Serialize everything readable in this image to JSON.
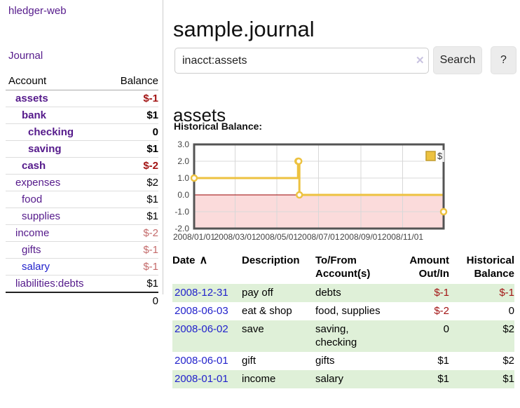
{
  "colors": {
    "purple": "#551a8b",
    "blue": "#2222cc",
    "neg_strong": "#a31515",
    "neg_weak": "#c46b6b",
    "stripe": "#dff0d8"
  },
  "sidebar": {
    "app_title": "hledger-web",
    "journal_link": "Journal",
    "accounts_table": {
      "headers": {
        "account": "Account",
        "balance": "Balance"
      },
      "rows": [
        {
          "name": "assets",
          "balance": "$-1",
          "depth": 1,
          "bold": true,
          "balance_style": "neg-strong"
        },
        {
          "name": "bank",
          "balance": "$1",
          "depth": 2,
          "bold": true,
          "balance_style": ""
        },
        {
          "name": "checking",
          "balance": "0",
          "depth": 3,
          "bold": true,
          "balance_style": ""
        },
        {
          "name": "saving",
          "balance": "$1",
          "depth": 3,
          "bold": true,
          "balance_style": ""
        },
        {
          "name": "cash",
          "balance": "$-2",
          "depth": 2,
          "bold": true,
          "balance_style": "neg-strong"
        },
        {
          "name": "expenses",
          "balance": "$2",
          "depth": 1,
          "bold": false,
          "balance_style": ""
        },
        {
          "name": "food",
          "balance": "$1",
          "depth": 2,
          "bold": false,
          "balance_style": ""
        },
        {
          "name": "supplies",
          "balance": "$1",
          "depth": 2,
          "bold": false,
          "balance_style": ""
        },
        {
          "name": "income",
          "balance": "$-2",
          "depth": 1,
          "bold": false,
          "balance_style": "neg-weak"
        },
        {
          "name": "gifts",
          "balance": "$-1",
          "depth": 2,
          "bold": false,
          "balance_style": "neg-weak"
        },
        {
          "name": "salary",
          "balance": "$-1",
          "depth": 2,
          "bold": false,
          "balance_style": "neg-weak",
          "link_style": "blue"
        },
        {
          "name": "liabilities:debts",
          "balance": "$1",
          "depth": 1,
          "bold": false,
          "balance_style": ""
        }
      ],
      "total": "0"
    }
  },
  "header": {
    "title": "sample.journal"
  },
  "search": {
    "value": "inacct:assets",
    "clear_icon": "✕",
    "button_label": "Search",
    "help_label": "?"
  },
  "account_view": {
    "heading": "assets",
    "chart_label": "Historical Balance:"
  },
  "chart_data": {
    "type": "line",
    "step": true,
    "title": "Historical Balance:",
    "series": [
      {
        "name": "$",
        "color": "#edc240",
        "points": [
          [
            "2008-01-01",
            1
          ],
          [
            "2008-06-01",
            2
          ],
          [
            "2008-06-02",
            2
          ],
          [
            "2008-06-03",
            0
          ],
          [
            "2008-12-31",
            -1
          ]
        ]
      }
    ],
    "xrange": [
      "2008-01-01",
      "2008-12-31"
    ],
    "ylim": [
      -2,
      3
    ],
    "yticks": [
      {
        "value": 3,
        "label": "3.0"
      },
      {
        "value": 2,
        "label": "2.0"
      },
      {
        "value": 1,
        "label": "1.0"
      },
      {
        "value": 0,
        "label": "0.0"
      },
      {
        "value": -1,
        "label": "-1.0"
      },
      {
        "value": -2,
        "label": "-2.0"
      }
    ],
    "xticks": [
      {
        "date": "2008-01-01",
        "label": "2008/01/01"
      },
      {
        "date": "2008-03-01",
        "label": "2008/03/01"
      },
      {
        "date": "2008-05-01",
        "label": "2008/05/01"
      },
      {
        "date": "2008-07-01",
        "label": "2008/07/01"
      },
      {
        "date": "2008-09-01",
        "label": "2008/09/01"
      },
      {
        "date": "2008-11-01",
        "label": "2008/11/01"
      }
    ],
    "legend": {
      "position": "top-right",
      "label": "$"
    },
    "grid": true,
    "grid_color": "#d8d8d8",
    "border_color": "#545454",
    "zero_line_color": "#990000",
    "negative_fill": "#fbdbdb",
    "tick_label_color": "#444444"
  },
  "register": {
    "sort_icon": "∧",
    "headers": [
      {
        "lines": [
          "Date"
        ],
        "align": "left",
        "sortable": true
      },
      {
        "lines": [
          "Description"
        ],
        "align": "left"
      },
      {
        "lines": [
          "To/From",
          "Account(s)"
        ],
        "align": "left"
      },
      {
        "lines": [
          "Amount",
          "Out/In"
        ],
        "align": "right"
      },
      {
        "lines": [
          "Historical",
          "Balance"
        ],
        "align": "right"
      }
    ],
    "rows": [
      {
        "date": "2008-12-31",
        "description": "pay off",
        "accounts": "debts",
        "amount": "$-1",
        "amount_neg": true,
        "balance": "$-1",
        "balance_neg": true,
        "striped": true
      },
      {
        "date": "2008-06-03",
        "description": "eat & shop",
        "accounts": "food, supplies",
        "amount": "$-2",
        "amount_neg": true,
        "balance": "0",
        "balance_neg": false,
        "striped": false
      },
      {
        "date": "2008-06-02",
        "description": "save",
        "accounts": "saving,\nchecking",
        "amount": "0",
        "amount_neg": false,
        "balance": "$2",
        "balance_neg": false,
        "striped": true
      },
      {
        "date": "2008-06-01",
        "description": "gift",
        "accounts": "gifts",
        "amount": "$1",
        "amount_neg": false,
        "balance": "$2",
        "balance_neg": false,
        "striped": false
      },
      {
        "date": "2008-01-01",
        "description": "income",
        "accounts": "salary",
        "amount": "$1",
        "amount_neg": false,
        "balance": "$1",
        "balance_neg": false,
        "striped": true
      }
    ]
  }
}
